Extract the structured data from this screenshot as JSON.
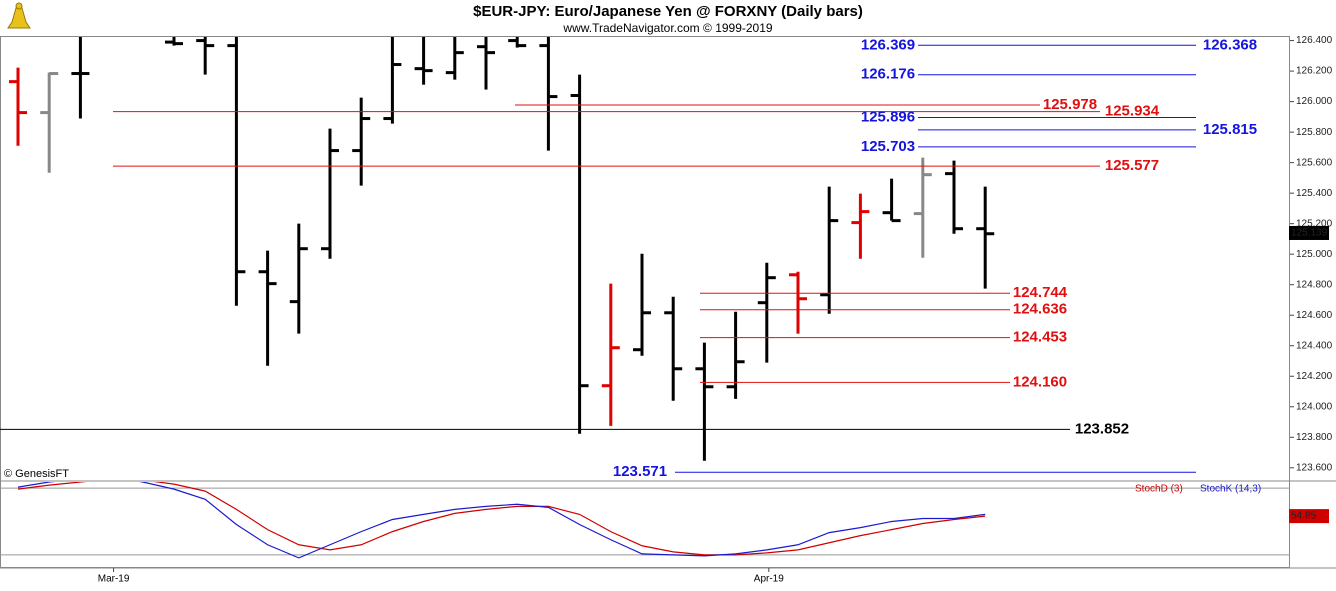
{
  "chart_data": [
    {
      "type": "ohlc",
      "title": "$EUR-JPY:  Euro/Japanese Yen @ FORXNY  (Daily bars)",
      "subtitle": "www.TradeNavigator.com © 1999-2019",
      "watermark": "© GenesisFT",
      "categories": [
        null,
        null,
        null,
        "Mar-19",
        null,
        null,
        null,
        null,
        null,
        null,
        null,
        null,
        null,
        null,
        null,
        null,
        null,
        null,
        null,
        null,
        null,
        null,
        null,
        null,
        "Apr-19",
        null,
        null,
        null,
        null,
        null,
        null,
        null
      ],
      "open": [
        126.131,
        125.928,
        126.184,
        null,
        null,
        126.39,
        126.4,
        126.367,
        124.885,
        124.689,
        125.036,
        125.679,
        125.889,
        126.216,
        126.19,
        126.36,
        126.4,
        126.367,
        126.04,
        124.138,
        124.374,
        124.616,
        124.249,
        124.131,
        124.682,
        124.865,
        124.734,
        125.207,
        125.272,
        125.266,
        125.528,
        125.167
      ],
      "high": [
        126.223,
        126.19,
        126.43,
        null,
        null,
        126.43,
        126.43,
        126.43,
        125.023,
        125.2,
        125.823,
        126.026,
        126.43,
        126.43,
        126.43,
        126.43,
        126.43,
        126.43,
        126.177,
        124.807,
        125.003,
        124.721,
        124.42,
        124.623,
        124.944,
        124.885,
        125.443,
        125.397,
        125.495,
        125.633,
        125.613,
        125.443
      ],
      "low": [
        125.711,
        125.534,
        125.889,
        null,
        null,
        126.367,
        126.177,
        124.662,
        124.269,
        124.479,
        124.97,
        125.449,
        125.856,
        126.111,
        126.144,
        126.079,
        126.354,
        125.679,
        123.823,
        123.875,
        124.334,
        124.039,
        123.646,
        124.052,
        124.289,
        124.479,
        124.61,
        124.97,
        125.22,
        124.977,
        125.134,
        124.774
      ],
      "close": [
        125.928,
        126.184,
        126.184,
        null,
        null,
        126.38,
        126.367,
        124.885,
        124.807,
        125.036,
        125.679,
        125.889,
        126.243,
        126.203,
        126.321,
        126.321,
        126.367,
        126.033,
        124.138,
        124.387,
        124.616,
        124.249,
        124.131,
        124.295,
        124.846,
        124.708,
        125.22,
        125.279,
        125.22,
        125.521,
        125.167,
        125.134
      ],
      "colors": [
        "#e00000",
        "#888888",
        "#000000",
        null,
        null,
        "#000000",
        "#000000",
        "#000000",
        "#000000",
        "#000000",
        "#000000",
        "#000000",
        "#000000",
        "#000000",
        "#000000",
        "#000000",
        "#000000",
        "#000000",
        "#000000",
        "#e00000",
        "#000000",
        "#000000",
        "#000000",
        "#000000",
        "#000000",
        "#e00000",
        "#000000",
        "#e00000",
        "#000000",
        "#888888",
        "#000000",
        "#000000"
      ],
      "ylim": [
        123.52,
        126.43
      ],
      "yticks": [
        {
          "value": 123.6,
          "label": "123.600"
        },
        {
          "value": 123.8,
          "label": "123.800"
        },
        {
          "value": 124.0,
          "label": "124.000"
        },
        {
          "value": 124.2,
          "label": "124.200"
        },
        {
          "value": 124.4,
          "label": "124.400"
        },
        {
          "value": 124.6,
          "label": "124.600"
        },
        {
          "value": 124.8,
          "label": "124.800"
        },
        {
          "value": 125.0,
          "label": "125.000"
        },
        {
          "value": 125.2,
          "label": "125.200"
        },
        {
          "value": 125.4,
          "label": "125.400"
        },
        {
          "value": 125.6,
          "label": "125.600"
        },
        {
          "value": 125.8,
          "label": "125.800"
        },
        {
          "value": 126.0,
          "label": "126.000"
        },
        {
          "value": 126.2,
          "label": "126.200"
        },
        {
          "value": 126.4,
          "label": "126.400"
        }
      ],
      "levels": [
        {
          "value": 126.369,
          "label": "126.369",
          "color": "#1414e0"
        },
        {
          "value": 126.368,
          "label": "126.368",
          "color": "#1414e0"
        },
        {
          "value": 126.176,
          "label": "126.176",
          "color": "#1414e0"
        },
        {
          "value": 125.978,
          "label": "125.978",
          "color": "#e01010"
        },
        {
          "value": 125.934,
          "label": "125.934",
          "color": "#e01010"
        },
        {
          "value": 125.896,
          "label": "125.896",
          "color": "#1414e0"
        },
        {
          "value": 125.815,
          "label": "125.815",
          "color": "#1414e0"
        },
        {
          "value": 125.703,
          "label": "125.703",
          "color": "#1414e0"
        },
        {
          "value": 125.577,
          "label": "125.577",
          "color": "#e01010"
        },
        {
          "value": 124.744,
          "label": "124.744",
          "color": "#e01010"
        },
        {
          "value": 124.636,
          "label": "124.636",
          "color": "#e01010"
        },
        {
          "value": 124.453,
          "label": "124.453",
          "color": "#e01010"
        },
        {
          "value": 124.16,
          "label": "124.160",
          "color": "#e01010"
        },
        {
          "value": 123.852,
          "label": "123.852",
          "color": "#000000"
        },
        {
          "value": 123.571,
          "label": "123.571",
          "color": "#1414e0"
        }
      ],
      "last_price": {
        "value": 125.139,
        "label": "125.139"
      }
    },
    {
      "type": "line",
      "series": [
        {
          "name": "StochD (3)",
          "color": "#d00000",
          "values": [
            79.1,
            82.7,
            85.5,
            88.2,
            87.3,
            83.6,
            77.3,
            60.9,
            42.7,
            29.1,
            24.5,
            29.1,
            40.9,
            50,
            57.3,
            60.9,
            63.6,
            63.6,
            56.4,
            40.9,
            28.2,
            22.7,
            20,
            20,
            21.8,
            24.5,
            30.9,
            37.3,
            42.7,
            48.2,
            51.8,
            54.85
          ]
        },
        {
          "name": "StochK (14,3)",
          "color": "#1a1ad0",
          "values": [
            80.9,
            85.5,
            88.2,
            90,
            85.5,
            79.1,
            70,
            47.3,
            29.1,
            17.3,
            29.1,
            40.9,
            51.8,
            56.4,
            60.9,
            63.6,
            65.5,
            62.7,
            47.3,
            33.6,
            20.9,
            20,
            19.1,
            20.9,
            24.5,
            29.1,
            40,
            44.5,
            50,
            52.7,
            52.7,
            56.4
          ]
        }
      ],
      "ylim": [
        8.2,
        85.5
      ],
      "levels": [
        20,
        80
      ]
    }
  ]
}
